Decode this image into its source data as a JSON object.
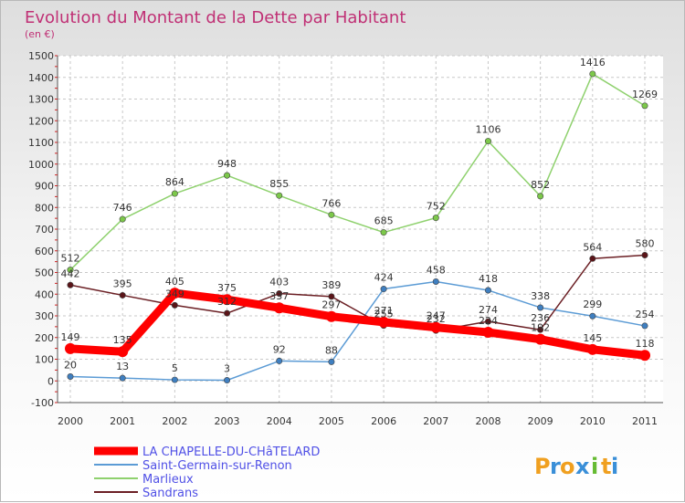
{
  "chart_data": {
    "type": "line",
    "title": "Evolution du Montant de la Dette par Habitant",
    "subtitle": "(en €)",
    "categories": [
      "2000",
      "2001",
      "2002",
      "2003",
      "2004",
      "2005",
      "2006",
      "2007",
      "2008",
      "2009",
      "2010",
      "2011"
    ],
    "ylim": [
      -100,
      1500
    ],
    "yticks": [
      -100,
      0,
      100,
      200,
      300,
      400,
      500,
      600,
      700,
      800,
      900,
      1000,
      1100,
      1200,
      1300,
      1400,
      1500
    ],
    "grid": true,
    "legend_position": "bottom-left",
    "series": [
      {
        "name": "LA CHAPELLE-DU-CHâTELARD",
        "color": "#ff0000",
        "values": [
          149,
          135,
          405,
          375,
          337,
          297,
          271,
          247,
          224,
          192,
          145,
          118
        ]
      },
      {
        "name": "Saint-Germain-sur-Renon",
        "color": "#5b9bd5",
        "values": [
          20,
          13,
          5,
          3,
          92,
          88,
          424,
          458,
          418,
          338,
          299,
          254
        ]
      },
      {
        "name": "Marlieux",
        "color": "#8fd16e",
        "values": [
          512,
          746,
          864,
          948,
          855,
          766,
          685,
          752,
          1106,
          852,
          1416,
          1269
        ]
      },
      {
        "name": "Sandrans",
        "color": "#6b1f24",
        "values": [
          442,
          395,
          349,
          312,
          403,
          389,
          255,
          232,
          274,
          236,
          564,
          580
        ]
      }
    ]
  },
  "brand": {
    "letters": [
      "P",
      "r",
      "o",
      "x",
      "i",
      "t",
      "i"
    ],
    "colors": [
      "#f0a020",
      "#3a8fd8",
      "#f0a020",
      "#3a8fd8",
      "#66bb33",
      "#f0a020",
      "#3a8fd8"
    ]
  }
}
